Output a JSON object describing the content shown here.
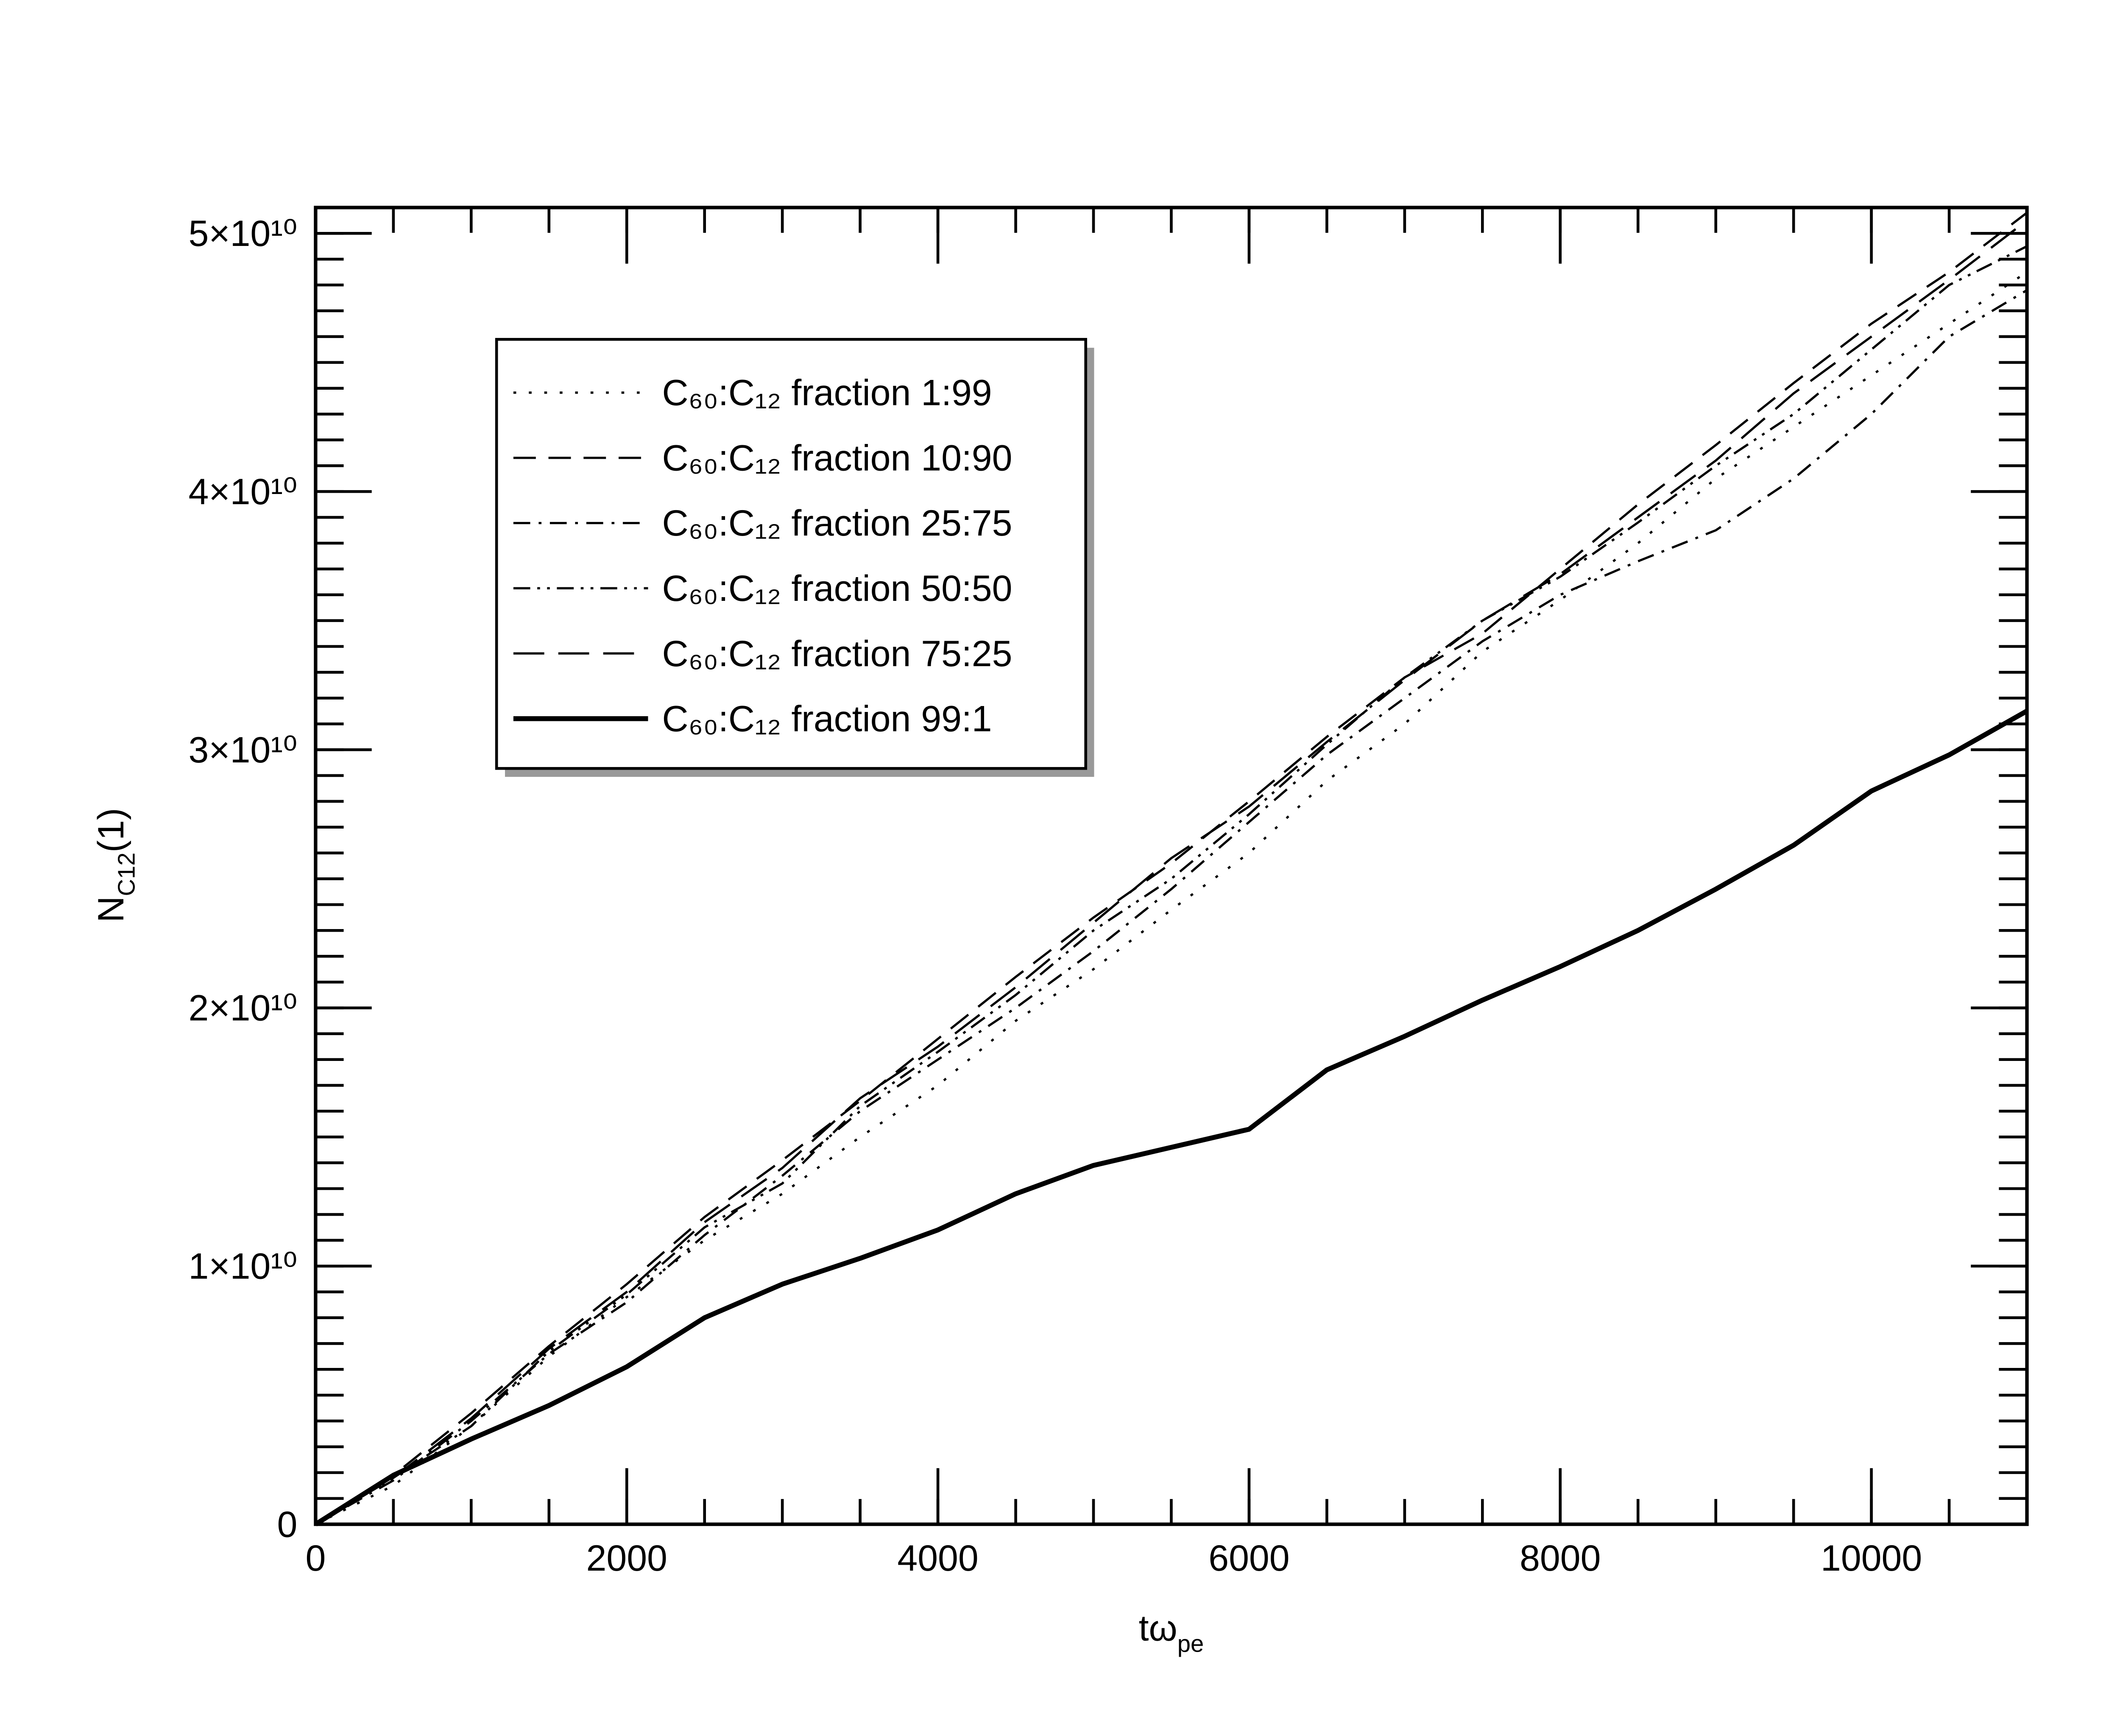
{
  "chart_data": {
    "type": "line",
    "x_label": {
      "text": "tω",
      "subscript": "pe"
    },
    "y_label": {
      "text": "N",
      "subscript": "C12",
      "suffix": "(1)"
    },
    "x": [
      0,
      500,
      1000,
      1500,
      2000,
      2500,
      3000,
      3500,
      4000,
      4500,
      5000,
      5500,
      6000,
      6500,
      7000,
      7500,
      8000,
      8500,
      9000,
      9500,
      10000,
      10500,
      11000
    ],
    "series": [
      {
        "name": "C₆₀:C₁₂ fraction 1:99",
        "color": "#000000",
        "dash": "2 9",
        "width": 1.6,
        "values": [
          0,
          1500000000,
          3800000000,
          6500000000,
          8800000000,
          11000000000,
          12800000000,
          15000000000,
          17000000000,
          19500000000,
          21500000000,
          23800000000,
          26000000000,
          28800000000,
          31000000000,
          33800000000,
          35800000000,
          38000000000,
          40500000000,
          42500000000,
          44500000000,
          46500000000,
          48500000000
        ]
      },
      {
        "name": "C₆₀:C₁₂ fraction 10:90",
        "color": "#000000",
        "dash": "16 9",
        "width": 1.6,
        "values": [
          0,
          1900000000,
          4300000000,
          6900000000,
          9300000000,
          11900000000,
          14100000000,
          16400000000,
          18800000000,
          21200000000,
          23500000000,
          25600000000,
          28000000000,
          30500000000,
          32800000000,
          34500000000,
          37000000000,
          39500000000,
          41800000000,
          44200000000,
          46500000000,
          48500000000,
          50800000000
        ]
      },
      {
        "name": "C₆₀:C₁₂ fraction 25:75",
        "color": "#000000",
        "dash": "12 6 2 6",
        "width": 1.6,
        "values": [
          0,
          1700000000,
          4000000000,
          6600000000,
          8600000000,
          11200000000,
          13500000000,
          16000000000,
          18000000000,
          20000000000,
          22200000000,
          24600000000,
          27200000000,
          29800000000,
          32000000000,
          34200000000,
          36000000000,
          37300000000,
          38500000000,
          40500000000,
          43000000000,
          46000000000,
          47800000000
        ]
      },
      {
        "name": "C₆₀:C₁₂ fraction 50:50",
        "color": "#000000",
        "dash": "12 5 2 5 2 5",
        "width": 1.6,
        "values": [
          0,
          1800000000,
          3800000000,
          6700000000,
          8900000000,
          11500000000,
          13200000000,
          16200000000,
          18300000000,
          20500000000,
          23000000000,
          25000000000,
          27500000000,
          30200000000,
          32800000000,
          35000000000,
          36700000000,
          38800000000,
          41000000000,
          43000000000,
          45500000000,
          48000000000,
          49500000000
        ]
      },
      {
        "name": "C₆₀:C₁₂ fraction 75:25",
        "color": "#000000",
        "dash": "22 10",
        "width": 1.6,
        "values": [
          0,
          1800000000,
          4100000000,
          6800000000,
          9000000000,
          11700000000,
          13800000000,
          16500000000,
          18500000000,
          20800000000,
          23300000000,
          25800000000,
          27800000000,
          30300000000,
          32700000000,
          35000000000,
          36800000000,
          39000000000,
          41200000000,
          43800000000,
          46000000000,
          48200000000,
          50500000000
        ]
      },
      {
        "name": "C₆₀:C₁₂ fraction 99:1",
        "color": "#000000",
        "dash": "none",
        "width": 3.5,
        "values": [
          0,
          1900000000,
          3300000000,
          4600000000,
          6100000000,
          8000000000,
          9300000000,
          10300000000,
          11400000000,
          12800000000,
          13900000000,
          14600000000,
          15300000000,
          17600000000,
          18900000000,
          20300000000,
          21600000000,
          23000000000,
          24600000000,
          26300000000,
          28400000000,
          29800000000,
          31500000000
        ]
      }
    ],
    "xlim": [
      0,
      11000
    ],
    "xticks": [
      0,
      2000,
      4000,
      6000,
      8000,
      10000
    ],
    "ylim": [
      0,
      51000000000
    ],
    "yticks": [
      0,
      {
        "value": 10000000000,
        "label": "1×10¹⁰"
      },
      {
        "value": 20000000000,
        "label": "2×10¹⁰"
      },
      {
        "value": 30000000000,
        "label": "3×10¹⁰"
      },
      {
        "value": 40000000000,
        "label": "4×10¹⁰"
      },
      {
        "value": 50000000000,
        "label": "5×10¹⁰"
      }
    ],
    "minor_ticks": {
      "x": 500,
      "y": 1000000000
    },
    "grid": false,
    "legend": "upper left"
  }
}
